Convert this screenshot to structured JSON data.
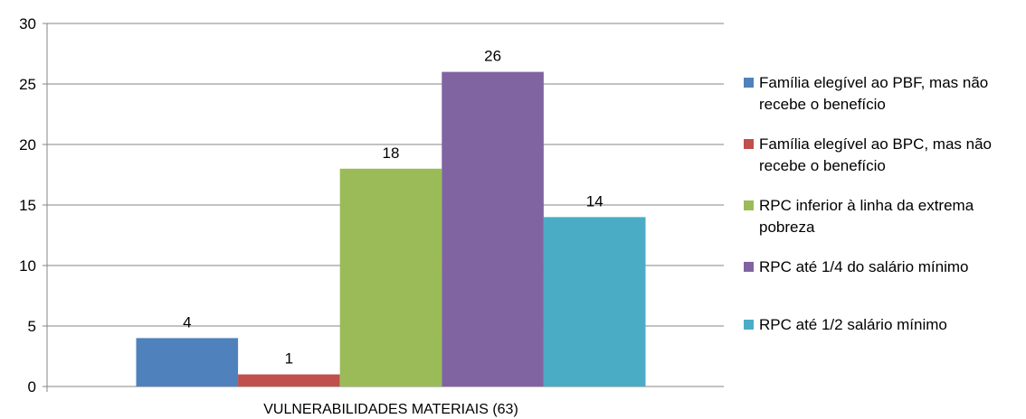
{
  "chart_data": {
    "type": "bar",
    "categories": [
      "VULNERABILIDADES MATERIAIS (63)"
    ],
    "ylim": [
      0,
      30
    ],
    "yticks": [
      0,
      5,
      10,
      15,
      20,
      25,
      30
    ],
    "grid": true,
    "legend_position": "right",
    "series": [
      {
        "name": "Família elegível ao PBF, mas não recebe o benefício",
        "values": [
          4
        ],
        "color": "#4F81BD"
      },
      {
        "name": "Família elegível ao BPC, mas não recebe o benefício",
        "values": [
          1
        ],
        "color": "#C0504D"
      },
      {
        "name": "RPC inferior à linha da extrema pobreza",
        "values": [
          18
        ],
        "color": "#9BBB59"
      },
      {
        "name": "RPC até 1/4 do salário mínimo",
        "values": [
          26
        ],
        "color": "#8064A2"
      },
      {
        "name": "RPC até 1/2 salário mínimo",
        "values": [
          14
        ],
        "color": "#4BACC6"
      }
    ]
  }
}
